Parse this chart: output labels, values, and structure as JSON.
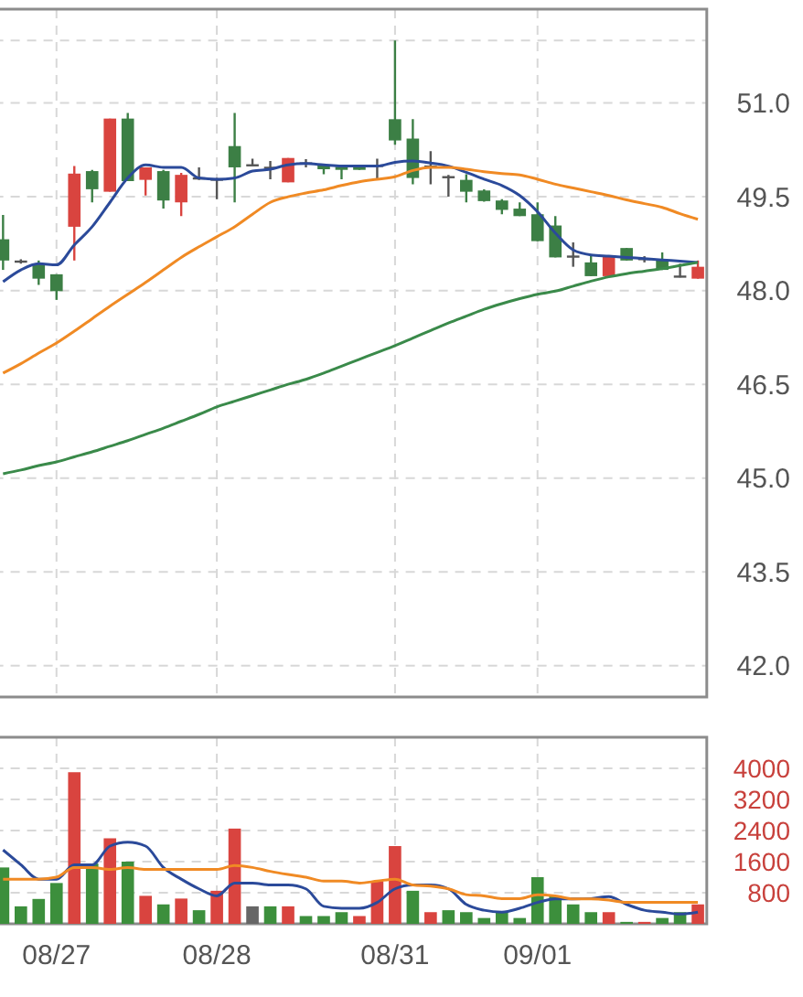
{
  "chart_data": [
    {
      "type": "candlestick",
      "categories": [
        null,
        null,
        null,
        null,
        null,
        null,
        null,
        null,
        null,
        null,
        null,
        null,
        null,
        null,
        null,
        null,
        null,
        null,
        null,
        null,
        null,
        null,
        null,
        null,
        null,
        null,
        null,
        null,
        null,
        null,
        null,
        null,
        null,
        null,
        null,
        null,
        null,
        null,
        null,
        null
      ],
      "ohlc": [
        [
          48.82,
          49.21,
          48.33,
          48.48
        ],
        [
          48.48,
          48.5,
          48.43,
          48.46
        ],
        [
          48.43,
          48.48,
          48.09,
          48.19
        ],
        [
          48.26,
          48.26,
          47.85,
          47.99
        ],
        [
          49.02,
          49.99,
          48.48,
          49.87
        ],
        [
          49.91,
          49.93,
          49.41,
          49.62
        ],
        [
          49.58,
          50.75,
          49.58,
          50.75
        ],
        [
          50.75,
          50.84,
          49.75,
          49.75
        ],
        [
          49.77,
          49.97,
          49.52,
          49.97
        ],
        [
          49.91,
          49.93,
          49.31,
          49.44
        ],
        [
          49.41,
          49.88,
          49.19,
          49.85
        ],
        [
          49.81,
          49.97,
          49.77,
          49.79
        ],
        [
          49.79,
          49.8,
          49.46,
          49.77
        ],
        [
          50.31,
          50.84,
          49.41,
          49.97
        ],
        [
          50.02,
          50.11,
          49.99,
          50.0
        ],
        [
          49.98,
          50.07,
          49.78,
          49.96
        ],
        [
          49.73,
          50.12,
          49.73,
          50.12
        ],
        [
          50.05,
          50.1,
          49.97,
          50.03
        ],
        [
          50.01,
          50.02,
          49.86,
          49.94
        ],
        [
          49.98,
          49.99,
          49.78,
          49.93
        ],
        [
          49.98,
          49.98,
          49.93,
          49.93
        ],
        [
          50.01,
          50.11,
          49.78,
          50.0
        ],
        [
          50.74,
          52.0,
          50.33,
          50.4
        ],
        [
          50.43,
          50.74,
          49.7,
          49.8
        ],
        [
          50.0,
          50.23,
          49.7,
          49.98
        ],
        [
          49.83,
          49.85,
          49.5,
          49.81
        ],
        [
          49.77,
          49.86,
          49.41,
          49.58
        ],
        [
          49.6,
          49.62,
          49.42,
          49.43
        ],
        [
          49.44,
          49.46,
          49.22,
          49.29
        ],
        [
          49.31,
          49.41,
          49.19,
          49.19
        ],
        [
          49.22,
          49.41,
          48.79,
          48.79
        ],
        [
          49.04,
          49.19,
          48.53,
          48.53
        ],
        [
          48.56,
          48.77,
          48.38,
          48.54
        ],
        [
          48.45,
          48.58,
          48.23,
          48.23
        ],
        [
          48.23,
          48.55,
          48.23,
          48.55
        ],
        [
          48.68,
          48.68,
          48.48,
          48.48
        ],
        [
          48.52,
          48.55,
          48.45,
          48.5
        ],
        [
          48.48,
          48.61,
          48.33,
          48.33
        ],
        [
          48.24,
          48.43,
          48.21,
          48.22
        ],
        [
          48.19,
          48.48,
          48.19,
          48.38
        ]
      ],
      "colors": [
        "#3c7f45",
        "#555555",
        "#3c7f45",
        "#3c7f45",
        "#d9443f",
        "#3c7f45",
        "#d9443f",
        "#3c7f45",
        "#d9443f",
        "#3c7f45",
        "#d9443f",
        "#555555",
        "#555555",
        "#3c7f45",
        "#555555",
        "#555555",
        "#d9443f",
        "#555555",
        "#3c7f45",
        "#3c7f45",
        "#3c7f45",
        "#555555",
        "#3c7f45",
        "#3c7f45",
        "#555555",
        "#555555",
        "#3c7f45",
        "#3c7f45",
        "#3c7f45",
        "#3c7f45",
        "#3c7f45",
        "#3c7f45",
        "#555555",
        "#3c7f45",
        "#d9443f",
        "#3c7f45",
        "#555555",
        "#3c7f45",
        "#555555",
        "#d9443f"
      ],
      "series": [
        {
          "type": "line",
          "color": "#2b4a9a",
          "values": [
            48.14,
            48.33,
            48.43,
            48.41,
            48.73,
            49.02,
            49.41,
            49.8,
            50.01,
            49.97,
            49.97,
            49.8,
            49.78,
            49.8,
            49.91,
            49.94,
            50.01,
            50.03,
            50.01,
            49.99,
            49.99,
            49.99,
            50.05,
            50.07,
            50.04,
            49.99,
            49.89,
            49.78,
            49.68,
            49.52,
            49.26,
            48.92,
            48.65,
            48.57,
            48.55,
            48.53,
            48.51,
            48.49,
            48.47,
            48.45
          ]
        },
        {
          "type": "line",
          "color": "#f08a24",
          "values": [
            46.68,
            46.83,
            47.0,
            47.16,
            47.35,
            47.55,
            47.75,
            47.94,
            48.13,
            48.33,
            48.53,
            48.7,
            48.86,
            49.02,
            49.22,
            49.41,
            49.5,
            49.56,
            49.61,
            49.68,
            49.74,
            49.78,
            49.82,
            49.92,
            49.97,
            49.97,
            49.94,
            49.9,
            49.87,
            49.85,
            49.78,
            49.7,
            49.64,
            49.58,
            49.52,
            49.45,
            49.39,
            49.33,
            49.23,
            49.14
          ]
        },
        {
          "type": "line",
          "color": "#3a8a4a",
          "values": [
            45.07,
            45.13,
            45.2,
            45.26,
            45.34,
            45.42,
            45.51,
            45.6,
            45.7,
            45.8,
            45.91,
            46.02,
            46.14,
            46.23,
            46.32,
            46.41,
            46.5,
            46.58,
            46.68,
            46.79,
            46.9,
            47.01,
            47.12,
            47.24,
            47.36,
            47.48,
            47.59,
            47.7,
            47.79,
            47.87,
            47.94,
            47.99,
            48.07,
            48.15,
            48.22,
            48.27,
            48.31,
            48.35,
            48.4,
            48.45
          ]
        }
      ],
      "ylim": [
        41.5,
        52.5
      ],
      "yticks": [
        {
          "value": 42,
          "label": "42.0"
        },
        {
          "value": 43.5,
          "label": "43.5"
        },
        {
          "value": 45,
          "label": "45.0"
        },
        {
          "value": 46.5,
          "label": "46.5"
        },
        {
          "value": 48,
          "label": "48.0"
        },
        {
          "value": 49.5,
          "label": "49.5"
        },
        {
          "value": 51,
          "label": "51.0"
        },
        {
          "value": 52,
          "label": null
        }
      ],
      "grid": true,
      "tick_labels": "y"
    },
    {
      "type": "bar",
      "categories": [
        null,
        null,
        null,
        "08/27",
        null,
        null,
        null,
        null,
        null,
        null,
        null,
        null,
        "08/28",
        null,
        null,
        null,
        null,
        null,
        null,
        null,
        null,
        null,
        "08/31",
        null,
        null,
        null,
        null,
        null,
        null,
        null,
        "09/01",
        null,
        null,
        null,
        null,
        null,
        null,
        null,
        null,
        null
      ],
      "series": [
        {
          "type": "bar",
          "values": [
            1450,
            450,
            640,
            1050,
            3900,
            1550,
            2200,
            1600,
            720,
            500,
            650,
            350,
            850,
            2450,
            450,
            450,
            450,
            200,
            200,
            300,
            200,
            1100,
            2000,
            850,
            300,
            350,
            300,
            150,
            300,
            150,
            1200,
            720,
            500,
            300,
            300,
            50,
            50,
            150,
            300,
            500
          ],
          "colors": [
            "#3c8f3c",
            "#3c8f3c",
            "#3c8f3c",
            "#3c8f3c",
            "#d9443f",
            "#3c8f3c",
            "#d9443f",
            "#3c8f3c",
            "#d9443f",
            "#3c8f3c",
            "#d9443f",
            "#3c8f3c",
            "#d9443f",
            "#d9443f",
            "#666666",
            "#3c8f3c",
            "#d9443f",
            "#3c8f3c",
            "#3c8f3c",
            "#3c8f3c",
            "#d9443f",
            "#d9443f",
            "#d9443f",
            "#3c8f3c",
            "#d9443f",
            "#3c8f3c",
            "#3c8f3c",
            "#3c8f3c",
            "#3c8f3c",
            "#3c8f3c",
            "#3c8f3c",
            "#3c8f3c",
            "#3c8f3c",
            "#3c8f3c",
            "#d9443f",
            "#3c8f3c",
            "#d9443f",
            "#3c8f3c",
            "#3c8f3c",
            "#d9443f"
          ]
        },
        {
          "type": "line",
          "color": "#2b4a9a",
          "values": [
            1900,
            1520,
            1150,
            1150,
            1520,
            1520,
            2000,
            2100,
            2000,
            1450,
            1150,
            900,
            720,
            1050,
            1050,
            1000,
            1000,
            900,
            450,
            400,
            400,
            550,
            900,
            1000,
            1000,
            900,
            500,
            350,
            300,
            400,
            550,
            640,
            640,
            650,
            700,
            500,
            350,
            300,
            250,
            300
          ]
        },
        {
          "type": "line",
          "color": "#f08a24",
          "values": [
            1150,
            1150,
            1150,
            1200,
            1450,
            1450,
            1400,
            1450,
            1400,
            1400,
            1400,
            1400,
            1400,
            1500,
            1450,
            1350,
            1270,
            1200,
            1100,
            1100,
            1050,
            1100,
            1150,
            1000,
            970,
            900,
            750,
            720,
            650,
            650,
            750,
            720,
            640,
            640,
            610,
            550,
            550,
            550,
            550,
            550
          ]
        }
      ],
      "ylim": [
        0,
        4800
      ],
      "yticks": [
        800,
        1600,
        2400,
        3200,
        4000
      ],
      "grid": true
    }
  ]
}
